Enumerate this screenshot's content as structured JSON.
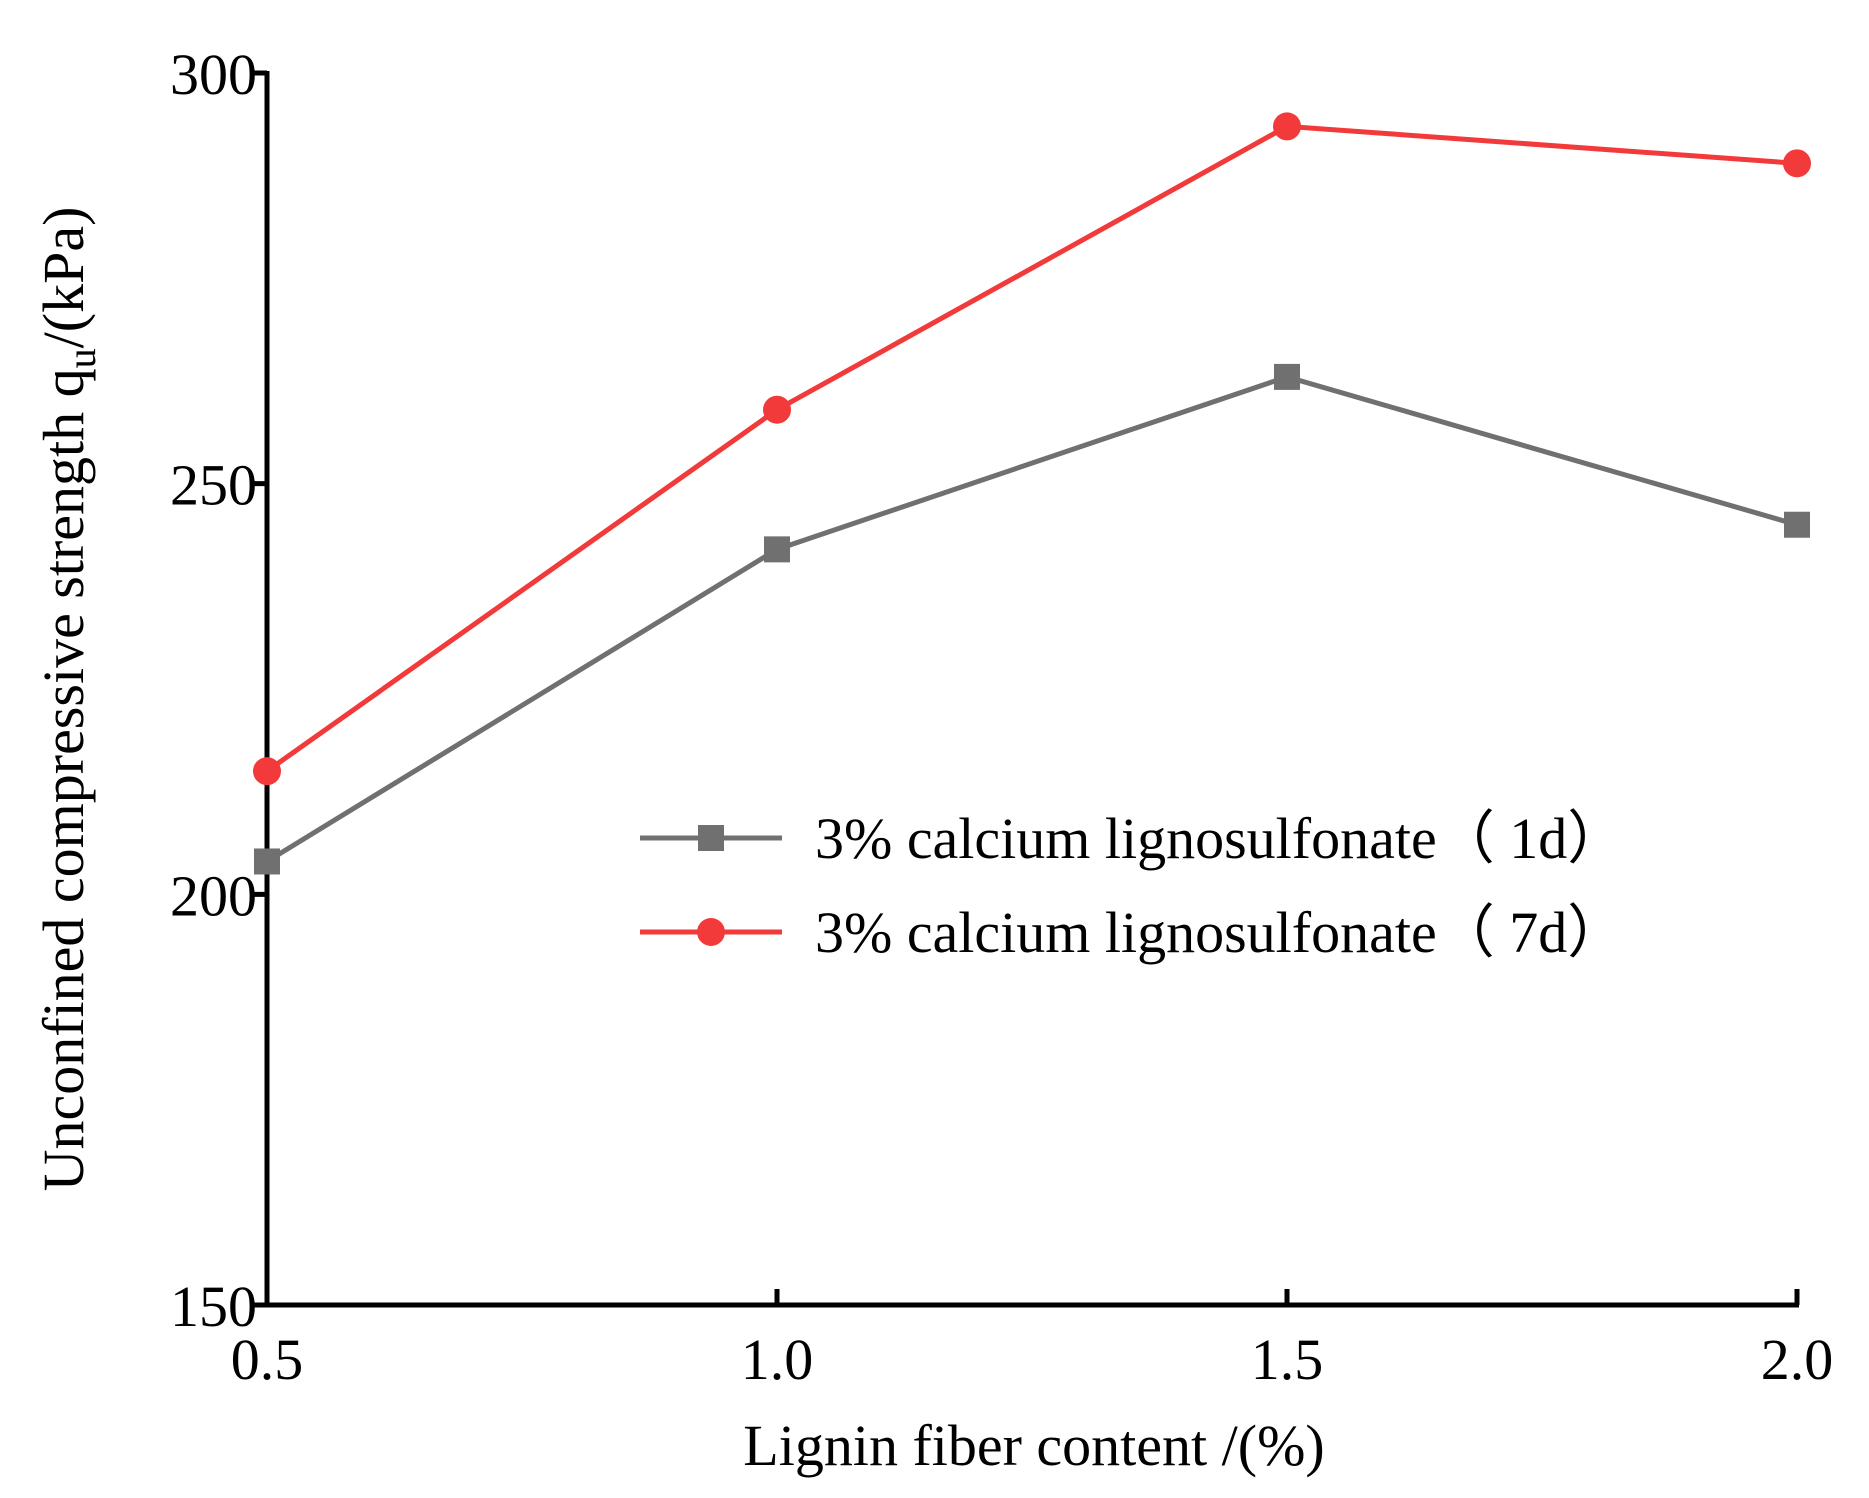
{
  "chart_data": {
    "type": "line",
    "x": [
      0.5,
      1.0,
      1.5,
      2.0
    ],
    "x_tick_labels": [
      "0.5",
      "1.0",
      "1.5",
      "2.0"
    ],
    "y_ticks": [
      150,
      200,
      250,
      300
    ],
    "y_tick_labels": [
      "150",
      "200",
      "250",
      "300"
    ],
    "xlim": [
      0.5,
      2.0
    ],
    "ylim": [
      150,
      300
    ],
    "xlabel": "Lignin fiber content /(%)",
    "ylabel_main": "Unconfined compressive strength q",
    "ylabel_sub": "u",
    "ylabel_tail": "/(kPa)",
    "grid": false,
    "legend_position": "center-right",
    "series": [
      {
        "name": "3% calcium lignosulfonate（ 1d）",
        "marker": "square",
        "color": "#707070",
        "values": [
          204,
          242,
          263,
          245
        ]
      },
      {
        "name": "3% calcium lignosulfonate（ 7d）",
        "marker": "circle",
        "color": "#f23a3a",
        "values": [
          215,
          259,
          293.5,
          289
        ]
      }
    ]
  }
}
